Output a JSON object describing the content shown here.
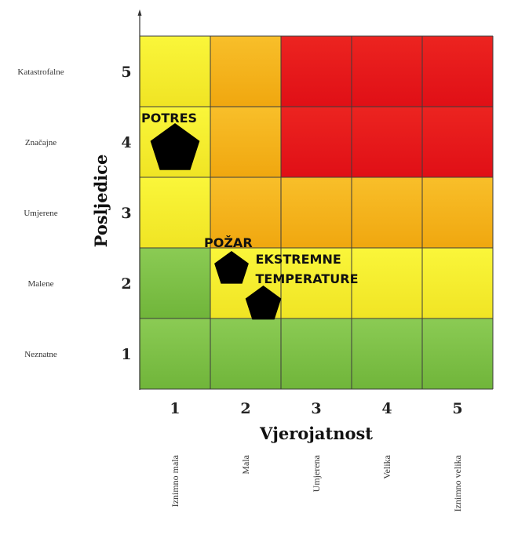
{
  "chart_data": {
    "type": "heatmap",
    "title": "",
    "xlabel": "Vjerojatnost",
    "ylabel": "Posljedice",
    "x_ticks": [
      "1",
      "2",
      "3",
      "4",
      "5"
    ],
    "y_ticks": [
      "1",
      "2",
      "3",
      "4",
      "5"
    ],
    "x_descriptors": [
      "Iznimno mala",
      "Mala",
      "Umjerena",
      "Velika",
      "Iznimno velika"
    ],
    "y_descriptors": [
      "Neznatne",
      "Malene",
      "Umjerene",
      "Značajne",
      "Katastrofalne"
    ],
    "xlim": [
      0.5,
      5.5
    ],
    "ylim": [
      0.5,
      5.5
    ],
    "grid": true,
    "colors": {
      "green": "#7cc045",
      "yellow": "#f6f22a",
      "orange": "#f5b316",
      "red": "#e8161a"
    },
    "cells": [
      [
        "green",
        "green",
        "green",
        "green",
        "green"
      ],
      [
        "green",
        "yellow",
        "yellow",
        "yellow",
        "yellow"
      ],
      [
        "yellow",
        "orange",
        "orange",
        "orange",
        "orange"
      ],
      [
        "yellow",
        "orange",
        "red",
        "red",
        "red"
      ],
      [
        "yellow",
        "orange",
        "red",
        "red",
        "red"
      ]
    ],
    "points": [
      {
        "label": "POTRES",
        "x": 1.0,
        "y": 3.9
      },
      {
        "label": "POŽAR",
        "x": 1.8,
        "y": 2.2
      },
      {
        "label": "EKSTREMNE TEMPERATURE",
        "x": 2.25,
        "y": 1.7
      }
    ],
    "marker": "pentagon"
  }
}
